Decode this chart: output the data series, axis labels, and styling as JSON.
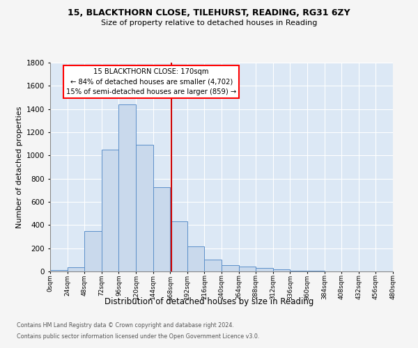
{
  "title1": "15, BLACKTHORN CLOSE, TILEHURST, READING, RG31 6ZY",
  "title2": "Size of property relative to detached houses in Reading",
  "xlabel": "Distribution of detached houses by size in Reading",
  "ylabel": "Number of detached properties",
  "footnote1": "Contains HM Land Registry data © Crown copyright and database right 2024.",
  "footnote2": "Contains public sector information licensed under the Open Government Licence v3.0.",
  "annotation_line1": "15 BLACKTHORN CLOSE: 170sqm",
  "annotation_line2": "← 84% of detached houses are smaller (4,702)",
  "annotation_line3": "15% of semi-detached houses are larger (859) →",
  "bin_edges": [
    0,
    24,
    48,
    72,
    96,
    120,
    144,
    168,
    192,
    216,
    240,
    264,
    288,
    312,
    336,
    360,
    384,
    408,
    432,
    456,
    480
  ],
  "bar_heights": [
    10,
    35,
    350,
    1050,
    1440,
    1090,
    725,
    430,
    215,
    105,
    52,
    40,
    28,
    18,
    8,
    5,
    3,
    2,
    1,
    1
  ],
  "bar_color": "#c9d9ec",
  "bar_edge_color": "#5b8fc9",
  "vline_color": "#cc0000",
  "vline_x": 170,
  "ylim": [
    0,
    1800
  ],
  "xlim": [
    0,
    480
  ],
  "bg_color": "#dce8f5",
  "grid_color": "#ffffff",
  "fig_bg_color": "#f5f5f5",
  "tick_labels": [
    "0sqm",
    "24sqm",
    "48sqm",
    "72sqm",
    "96sqm",
    "120sqm",
    "144sqm",
    "168sqm",
    "192sqm",
    "216sqm",
    "240sqm",
    "264sqm",
    "288sqm",
    "312sqm",
    "336sqm",
    "360sqm",
    "384sqm",
    "408sqm",
    "432sqm",
    "456sqm",
    "480sqm"
  ],
  "ytick_vals": [
    0,
    200,
    400,
    600,
    800,
    1000,
    1200,
    1400,
    1600,
    1800
  ]
}
